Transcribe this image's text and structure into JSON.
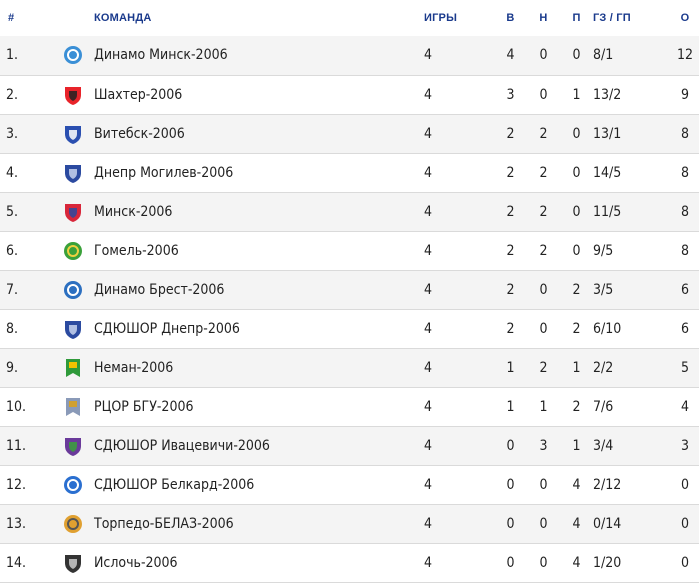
{
  "headers": {
    "pos": "#",
    "team": "КОМАНДА",
    "games": "ИГРЫ",
    "w": "В",
    "d": "Н",
    "l": "П",
    "goals": "ГЗ / ГП",
    "pts": "О"
  },
  "colors": {
    "header_text": "#1a3a8c",
    "row_odd": "#f4f4f4",
    "row_even": "#ffffff",
    "divider": "#dadada"
  },
  "rows": [
    {
      "pos": "1.",
      "team": "Динамо Минск-2006",
      "games": "4",
      "w": "4",
      "d": "0",
      "l": "0",
      "goals": "8/1",
      "pts": "12",
      "logo": "dinamo-minsk-crest-icon",
      "logo_color": "#3a8fd6",
      "logo_accent": "#ffffff"
    },
    {
      "pos": "2.",
      "team": "Шахтер-2006",
      "games": "4",
      "w": "3",
      "d": "0",
      "l": "1",
      "goals": "13/2",
      "pts": "9",
      "logo": "shakhter-crest-icon",
      "logo_color": "#e8232a",
      "logo_accent": "#222222"
    },
    {
      "pos": "3.",
      "team": "Витебск-2006",
      "games": "4",
      "w": "2",
      "d": "2",
      "l": "0",
      "goals": "13/1",
      "pts": "8",
      "logo": "vitebsk-crest-icon",
      "logo_color": "#2a4fb0",
      "logo_accent": "#ffffff"
    },
    {
      "pos": "4.",
      "team": "Днепр Могилев-2006",
      "games": "4",
      "w": "2",
      "d": "2",
      "l": "0",
      "goals": "14/5",
      "pts": "8",
      "logo": "dnepr-mogilev-crest-icon",
      "logo_color": "#2b4aa0",
      "logo_accent": "#c8d4ee"
    },
    {
      "pos": "5.",
      "team": "Минск-2006",
      "games": "4",
      "w": "2",
      "d": "2",
      "l": "0",
      "goals": "11/5",
      "pts": "8",
      "logo": "minsk-crest-icon",
      "logo_color": "#d8263a",
      "logo_accent": "#2b4aa0"
    },
    {
      "pos": "6.",
      "team": "Гомель-2006",
      "games": "4",
      "w": "2",
      "d": "2",
      "l": "0",
      "goals": "9/5",
      "pts": "8",
      "logo": "gomel-crest-icon",
      "logo_color": "#3aa13a",
      "logo_accent": "#f0d040"
    },
    {
      "pos": "7.",
      "team": "Динамо Брест-2006",
      "games": "4",
      "w": "2",
      "d": "0",
      "l": "2",
      "goals": "3/5",
      "pts": "6",
      "logo": "dinamo-brest-crest-icon",
      "logo_color": "#2c6fc0",
      "logo_accent": "#ffffff"
    },
    {
      "pos": "8.",
      "team": "СДЮШОР Днепр-2006",
      "games": "4",
      "w": "2",
      "d": "0",
      "l": "2",
      "goals": "6/10",
      "pts": "6",
      "logo": "sdyushor-dnepr-crest-icon",
      "logo_color": "#2b4aa0",
      "logo_accent": "#c8d4ee"
    },
    {
      "pos": "9.",
      "team": "Неман-2006",
      "games": "4",
      "w": "1",
      "d": "2",
      "l": "1",
      "goals": "2/2",
      "pts": "5",
      "logo": "neman-crest-icon",
      "logo_color": "#2f9a3a",
      "logo_accent": "#f2c200"
    },
    {
      "pos": "10.",
      "team": "РЦОР БГУ-2006",
      "games": "4",
      "w": "1",
      "d": "1",
      "l": "2",
      "goals": "7/6",
      "pts": "4",
      "logo": "rtsor-bgu-crest-icon",
      "logo_color": "#8a9ab8",
      "logo_accent": "#d0a030"
    },
    {
      "pos": "11.",
      "team": "СДЮШОР Ивацевичи-2006",
      "games": "4",
      "w": "0",
      "d": "3",
      "l": "1",
      "goals": "3/4",
      "pts": "3",
      "logo": "ivatsevichi-crest-icon",
      "logo_color": "#6a3a9a",
      "logo_accent": "#3aa13a"
    },
    {
      "pos": "12.",
      "team": "СДЮШОР Белкард-2006",
      "games": "4",
      "w": "0",
      "d": "0",
      "l": "4",
      "goals": "2/12",
      "pts": "0",
      "logo": "belkard-crest-icon",
      "logo_color": "#2a6fd0",
      "logo_accent": "#ffffff"
    },
    {
      "pos": "13.",
      "team": "Торпедо-БЕЛАЗ-2006",
      "games": "4",
      "w": "0",
      "d": "0",
      "l": "4",
      "goals": "0/14",
      "pts": "0",
      "logo": "torpedo-belaz-crest-icon",
      "logo_color": "#e0a030",
      "logo_accent": "#555555"
    },
    {
      "pos": "14.",
      "team": "Ислочь-2006",
      "games": "4",
      "w": "0",
      "d": "0",
      "l": "4",
      "goals": "1/20",
      "pts": "0",
      "logo": "isloch-crest-icon",
      "logo_color": "#333333",
      "logo_accent": "#cccccc"
    }
  ]
}
